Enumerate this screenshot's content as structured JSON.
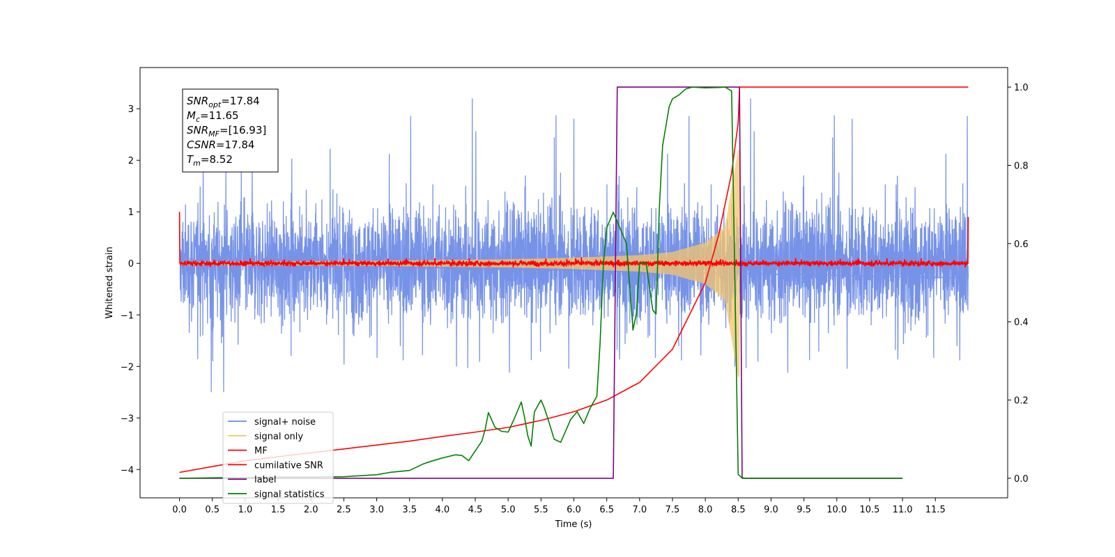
{
  "chart_data": {
    "type": "line",
    "xlabel": "Time (s)",
    "ylabel": "Whitened strain",
    "xlim": [
      -0.6,
      12.6
    ],
    "ylim": [
      -4.55,
      3.8
    ],
    "y2lim": [
      -0.05,
      1.05
    ],
    "x_ticks": [
      0.0,
      0.5,
      1.0,
      1.5,
      2.0,
      2.5,
      3.0,
      3.5,
      4.0,
      4.5,
      5.0,
      5.5,
      6.0,
      6.5,
      7.0,
      7.5,
      8.0,
      8.5,
      9.0,
      9.5,
      10.0,
      10.5,
      11.0,
      11.5
    ],
    "x_tick_labels": [
      "0.0",
      "0.5",
      "1.0",
      "1.5",
      "2.0",
      "2.5",
      "3.0",
      "3.5",
      "4.0",
      "4.5",
      "5.0",
      "5.5",
      "6.0",
      "6.5",
      "7.0",
      "7.5",
      "8.0",
      "8.5",
      "9.0",
      "9.5",
      "10.0",
      "10.5",
      "11.0",
      "11.5"
    ],
    "y_ticks": [
      3,
      2,
      1,
      0,
      -1,
      -2,
      -3,
      -4
    ],
    "y_tick_labels": [
      "3",
      "2",
      "1",
      "0",
      "−1",
      "−2",
      "−3",
      "−4"
    ],
    "y2_ticks": [
      1.0,
      0.8,
      0.6,
      0.4,
      0.2,
      0.0
    ],
    "y2_tick_labels": [
      "1.0",
      "0.8",
      "0.6",
      "0.4",
      "0.2",
      "0.0"
    ],
    "series": [
      {
        "name": "signal+ noise",
        "color": "#6b8ae6",
        "axis": "left",
        "style": "noise band",
        "x_range": [
          0.0,
          12.0
        ],
        "approx_envelope": [
          -2.5,
          3.2
        ]
      },
      {
        "name": "signal only",
        "color": "#f5c66c",
        "axis": "left",
        "style": "chirp",
        "x_range": [
          0.0,
          8.52
        ],
        "envelope_points": [
          [
            0.0,
            0.03
          ],
          [
            3.0,
            0.05
          ],
          [
            5.0,
            0.08
          ],
          [
            6.0,
            0.11
          ],
          [
            7.0,
            0.16
          ],
          [
            7.5,
            0.22
          ],
          [
            8.0,
            0.4
          ],
          [
            8.3,
            0.7
          ],
          [
            8.5,
            2.2
          ]
        ]
      },
      {
        "name": "MF",
        "color": "#ff0000",
        "axis": "left",
        "style": "noise band",
        "x_range": [
          0.0,
          12.0
        ],
        "approx_envelope": [
          -0.1,
          0.12
        ],
        "endpoints": [
          [
            0.0,
            1.0
          ],
          [
            12.0,
            0.9
          ]
        ]
      },
      {
        "name": "cumilative SNR",
        "color": "#ff0000",
        "axis": "right",
        "x": [
          0.0,
          0.5,
          1.0,
          1.5,
          2.0,
          2.5,
          3.0,
          3.5,
          4.0,
          4.5,
          5.0,
          5.5,
          6.0,
          6.5,
          7.0,
          7.5,
          8.0,
          8.2,
          8.4,
          8.5,
          8.52,
          12.0
        ],
        "values": [
          0.015,
          0.03,
          0.045,
          0.055,
          0.065,
          0.075,
          0.085,
          0.095,
          0.107,
          0.118,
          0.13,
          0.148,
          0.17,
          0.2,
          0.245,
          0.33,
          0.5,
          0.62,
          0.78,
          0.91,
          1.0,
          1.0
        ]
      },
      {
        "name": "label",
        "color": "#800080",
        "axis": "right",
        "x": [
          0.0,
          6.6,
          6.66,
          8.52,
          8.56,
          11.0
        ],
        "values": [
          0.0,
          0.0,
          1.0,
          1.0,
          0.0,
          0.0
        ]
      },
      {
        "name": "signal statistics",
        "color": "#008000",
        "axis": "right",
        "x": [
          0.0,
          0.5,
          1.0,
          1.5,
          2.0,
          2.5,
          3.0,
          3.2,
          3.5,
          3.7,
          3.8,
          4.0,
          4.2,
          4.3,
          4.4,
          4.5,
          4.6,
          4.65,
          4.7,
          4.8,
          4.9,
          5.0,
          5.1,
          5.2,
          5.25,
          5.3,
          5.35,
          5.4,
          5.5,
          5.55,
          5.6,
          5.7,
          5.8,
          5.95,
          6.05,
          6.15,
          6.25,
          6.35,
          6.4,
          6.45,
          6.5,
          6.6,
          6.7,
          6.8,
          6.9,
          6.95,
          7.0,
          7.1,
          7.2,
          7.25,
          7.3,
          7.35,
          7.4,
          7.45,
          7.5,
          7.6,
          7.7,
          7.8,
          8.0,
          8.2,
          8.3,
          8.4,
          8.45,
          8.5,
          8.55,
          8.6,
          11.0
        ],
        "values": [
          0.0,
          0.001,
          0.002,
          0.003,
          0.003,
          0.004,
          0.009,
          0.015,
          0.02,
          0.036,
          0.042,
          0.052,
          0.06,
          0.058,
          0.045,
          0.07,
          0.095,
          0.125,
          0.168,
          0.13,
          0.12,
          0.118,
          0.155,
          0.195,
          0.155,
          0.108,
          0.082,
          0.17,
          0.2,
          0.18,
          0.155,
          0.1,
          0.092,
          0.15,
          0.17,
          0.14,
          0.18,
          0.21,
          0.35,
          0.55,
          0.64,
          0.68,
          0.64,
          0.6,
          0.38,
          0.42,
          0.55,
          0.55,
          0.43,
          0.42,
          0.69,
          0.85,
          0.9,
          0.95,
          0.97,
          0.98,
          0.995,
          1.0,
          0.998,
          0.999,
          1.0,
          0.99,
          0.5,
          0.01,
          0.002,
          0.0,
          0.0
        ]
      }
    ],
    "legend": {
      "position": "lower-left",
      "entries": [
        {
          "label": "signal+ noise",
          "color": "#6b8ae6"
        },
        {
          "label": "signal only",
          "color": "#f5c66c"
        },
        {
          "label": "MF",
          "color": "#ff0000"
        },
        {
          "label": "cumilative SNR",
          "color": "#ff0000"
        },
        {
          "label": "label",
          "color": "#800080"
        },
        {
          "label": "signal statistics",
          "color": "#008000"
        }
      ]
    },
    "annotation_box": {
      "position": "top-left",
      "lines": [
        {
          "sym": "SNR",
          "sub": "opt",
          "val": "=17.84"
        },
        {
          "sym": "M",
          "sub": "c",
          "val": "=11.65"
        },
        {
          "sym": "SNR",
          "sub": "MF",
          "val": "=[16.93]"
        },
        {
          "sym": "CSNR",
          "sub": "",
          "val": "=17.84"
        },
        {
          "sym": "T",
          "sub": "m",
          "val": "=8.52"
        }
      ]
    },
    "grid": false
  }
}
